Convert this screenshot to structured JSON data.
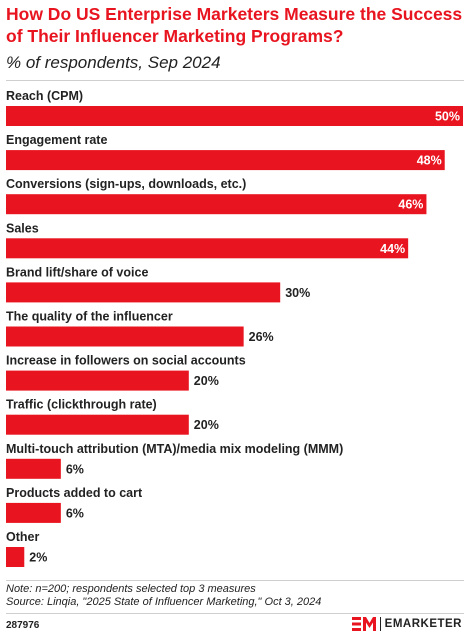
{
  "header": {
    "title": "How Do US Enterprise Marketers Measure the Success of Their Influencer Marketing Programs?",
    "subtitle": "% of respondents, Sep 2024"
  },
  "chart_data": {
    "type": "bar",
    "orientation": "horizontal",
    "title": "How Do US Enterprise Marketers Measure the Success of Their Influencer Marketing Programs?",
    "subtitle": "% of respondents, Sep 2024",
    "categories": [
      "Reach (CPM)",
      "Engagement rate",
      "Conversions (sign-ups, downloads, etc.)",
      "Sales",
      "Brand lift/share of voice",
      "The quality of the influencer",
      "Increase in followers on social accounts",
      "Traffic (clickthrough rate)",
      "Multi-touch attribution (MTA)/media mix modeling (MMM)",
      "Products added to cart",
      "Other"
    ],
    "values": [
      50,
      48,
      46,
      44,
      30,
      26,
      20,
      20,
      6,
      6,
      2
    ],
    "value_labels": [
      "50%",
      "48%",
      "46%",
      "44%",
      "30%",
      "26%",
      "20%",
      "20%",
      "6%",
      "6%",
      "2%"
    ],
    "unit": "%",
    "xlim": [
      0,
      50
    ],
    "grid": false,
    "legend": "none",
    "bar_color": "#e8141f"
  },
  "footer": {
    "note": "Note: n=200; respondents selected top 3 measures",
    "source": "Source: Linqia, \"2025 State of Influencer Marketing,\" Oct 3, 2024",
    "chart_id": "287976",
    "brand": "EMARKETER",
    "logo_mark": "EM",
    "brand_color": "#e8141f"
  }
}
